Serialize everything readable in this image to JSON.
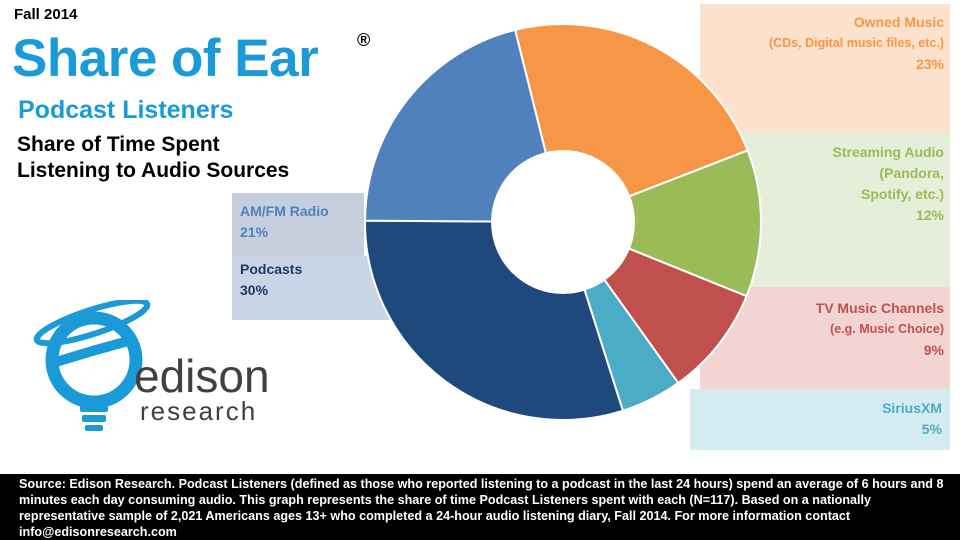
{
  "header": {
    "season": "Fall 2014",
    "title": "Share of Ear",
    "registered": "®",
    "subtitle": "Podcast Listeners",
    "description_line1": "Share of Time Spent",
    "description_line2": "Listening to Audio Sources"
  },
  "chart_data": {
    "type": "pie",
    "donut": true,
    "categories": [
      "Owned Music",
      "Streaming Audio",
      "TV Music Channels",
      "SiriusXM",
      "Podcasts",
      "AM/FM Radio"
    ],
    "values": [
      23,
      12,
      9,
      5,
      30,
      21
    ],
    "unit": "%",
    "colors": [
      "#F79646",
      "#9BBB59",
      "#C0504D",
      "#4BACC6",
      "#1F497D",
      "#4F81BD"
    ],
    "labels": {
      "owned": {
        "name": "Owned Music",
        "detail": "(CDs, Digital music files, etc.)",
        "value": "23%"
      },
      "streaming": {
        "name": "Streaming Audio",
        "detail1": "(Pandora,",
        "detail2": "Spotify, etc.)",
        "value": "12%"
      },
      "tv": {
        "name": "TV Music Channels",
        "detail": "(e.g. Music Choice)",
        "value": "9%"
      },
      "sirius": {
        "name": "SiriusXM",
        "value": "5%"
      },
      "podcasts": {
        "name": "Podcasts",
        "value": "30%"
      },
      "amfm": {
        "name": "AM/FM Radio",
        "value": "21%"
      }
    }
  },
  "logo": {
    "name": "edison",
    "tagline": "research"
  },
  "footer": {
    "source": "Source: Edison Research.  Podcast Listeners (defined as those who reported listening to a podcast in the last 24 hours) spend an average of 6 hours and 8 minutes each day consuming audio.  This graph represents the share of time Podcast  Listeners spent with each (N=117).  Based on a nationally representative sample of 2,021 Americans ages 13+ who completed a 24-hour audio listening diary, Fall 2014.  For more information contact info@edisonresearch.com"
  }
}
